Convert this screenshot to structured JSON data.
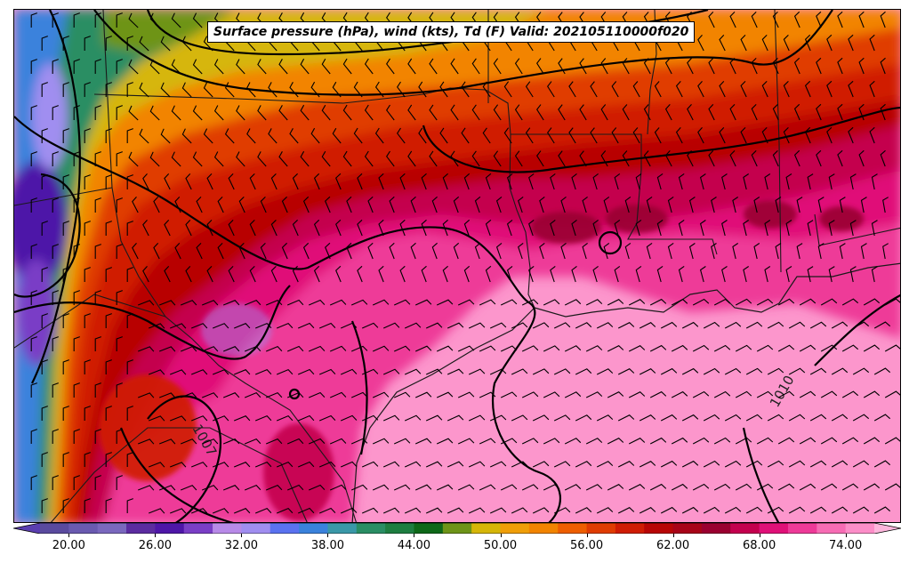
{
  "title": "Surface pressure (hPa), wind (kts), Td (F) Valid: 202105110000f020",
  "colorbar": {
    "min": 18,
    "max": 76,
    "step": 2,
    "tick_labels": [
      "20.00",
      "26.00",
      "32.00",
      "38.00",
      "44.00",
      "50.00",
      "56.00",
      "62.00",
      "68.00",
      "74.00"
    ],
    "tick_values": [
      20,
      26,
      32,
      38,
      44,
      50,
      56,
      62,
      68,
      74
    ],
    "colors": [
      "#5a4a9e",
      "#6a5ab0",
      "#7a68be",
      "#5c2ca0",
      "#4e16a8",
      "#7a3ec6",
      "#b88ae8",
      "#a08ef0",
      "#5a72f0",
      "#3a82dc",
      "#3a98a8",
      "#2a8e64",
      "#1e7e40",
      "#0e6818",
      "#6e9418",
      "#d6b608",
      "#f09e08",
      "#f28400",
      "#ee5e00",
      "#e03c02",
      "#d01c04",
      "#b80606",
      "#a80418",
      "#9a0030",
      "#c4004e",
      "#e01078",
      "#ee3a98",
      "#f76cb4",
      "#fc8ec8"
    ]
  },
  "isobar_labels": [
    "1007",
    "1010"
  ],
  "colors": {
    "background_field": "#fc96cc",
    "contour": "#000000",
    "border": "#1a1a1a"
  }
}
